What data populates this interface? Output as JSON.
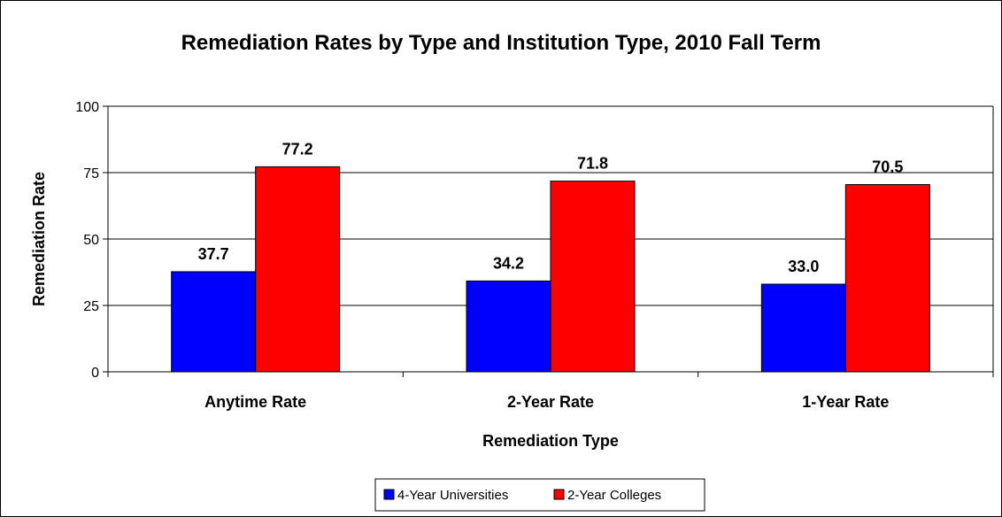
{
  "chart_data": {
    "type": "bar",
    "title": "Remediation Rates by Type and Institution Type, 2010 Fall Term",
    "xlabel": "Remediation Type",
    "ylabel": "Remediation Rate",
    "categories": [
      "Anytime Rate",
      "2-Year Rate",
      "1-Year Rate"
    ],
    "series": [
      {
        "name": "4-Year Universities",
        "values": [
          37.7,
          34.2,
          33.0
        ],
        "labels": [
          "37.7",
          "34.2",
          "33.0"
        ],
        "color": "#0000ff"
      },
      {
        "name": "2-Year Colleges",
        "values": [
          77.2,
          71.8,
          70.5
        ],
        "labels": [
          "77.2",
          "71.8",
          "70.5"
        ],
        "color": "#ff0000"
      }
    ],
    "ylim": [
      0,
      100
    ],
    "yticks": [
      0,
      25,
      50,
      75,
      100
    ],
    "grid": true,
    "legend_position": "bottom"
  }
}
